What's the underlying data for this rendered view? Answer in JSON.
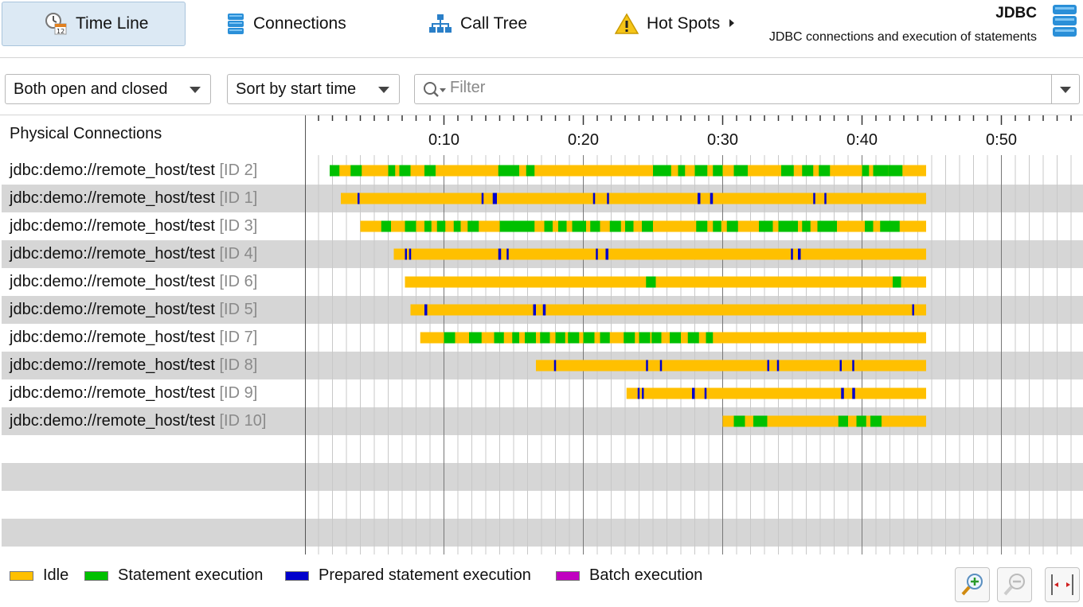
{
  "tabs": [
    {
      "label": "Time Line",
      "icon": "timeline-clock-icon",
      "active": true
    },
    {
      "label": "Connections",
      "icon": "database-icon",
      "active": false
    },
    {
      "label": "Call Tree",
      "icon": "call-tree-icon",
      "active": false
    },
    {
      "label": "Hot Spots",
      "icon": "warning-icon",
      "active": false
    }
  ],
  "header": {
    "title": "JDBC",
    "subtitle": "JDBC connections and execution of statements",
    "icon": "database-icon"
  },
  "filters": {
    "state_selected": "Both open and closed",
    "sort_selected": "Sort by start time",
    "filter_placeholder": "Filter",
    "filter_value": ""
  },
  "panel": {
    "left_header": "Physical Connections"
  },
  "timeline": {
    "unit": "seconds",
    "start_sec": 0,
    "end_sec": 56,
    "major_tick_labels": [
      "0:10",
      "0:20",
      "0:30",
      "0:40",
      "0:50"
    ],
    "major_tick_secs": [
      10,
      20,
      30,
      40,
      50
    ],
    "minor_tick_step_sec": 1
  },
  "colors": {
    "idle": "#ffc000",
    "statement": "#00c000",
    "prepared": "#0000cc",
    "batch": "#c000c0",
    "row_shade": "#d6d6d6"
  },
  "connections": [
    {
      "name": "jdbc:demo://remote_host/test",
      "id": "[ID 2]",
      "start": 2.0,
      "end": 44.6,
      "events": [
        [
          "s",
          1.8,
          2.5
        ],
        [
          "s",
          3.3,
          4.1
        ],
        [
          "s",
          6.0,
          6.5
        ],
        [
          "s",
          6.8,
          7.6
        ],
        [
          "s",
          8.6,
          9.4
        ],
        [
          "s",
          13.9,
          14.6
        ],
        [
          "s",
          14.6,
          15.4
        ],
        [
          "s",
          15.9,
          16.5
        ],
        [
          "s",
          25.0,
          25.8
        ],
        [
          "s",
          25.8,
          26.3
        ],
        [
          "s",
          26.8,
          27.3
        ],
        [
          "s",
          28.0,
          28.9
        ],
        [
          "s",
          29.3,
          30.0
        ],
        [
          "s",
          30.8,
          31.8
        ],
        [
          "s",
          34.2,
          35.1
        ],
        [
          "s",
          35.7,
          36.5
        ],
        [
          "s",
          36.9,
          37.7
        ],
        [
          "s",
          40.0,
          40.5
        ],
        [
          "s",
          40.8,
          41.9
        ],
        [
          "s",
          41.9,
          42.9
        ]
      ]
    },
    {
      "name": "jdbc:demo://remote_host/test",
      "id": "[ID 1]",
      "start": 2.6,
      "end": 44.6,
      "events": [
        [
          "p",
          3.8,
          3.9
        ],
        [
          "p",
          12.7,
          12.8
        ],
        [
          "p",
          13.5,
          13.8
        ],
        [
          "p",
          20.7,
          20.8
        ],
        [
          "p",
          21.7,
          21.8
        ],
        [
          "p",
          28.2,
          28.4
        ],
        [
          "p",
          29.1,
          29.3
        ],
        [
          "p",
          36.5,
          36.6
        ],
        [
          "p",
          37.3,
          37.4
        ]
      ]
    },
    {
      "name": "jdbc:demo://remote_host/test",
      "id": "[ID 3]",
      "start": 4.0,
      "end": 44.6,
      "events": [
        [
          "s",
          5.5,
          6.2
        ],
        [
          "s",
          7.2,
          8.0
        ],
        [
          "s",
          8.6,
          9.1
        ],
        [
          "s",
          9.5,
          10.1
        ],
        [
          "s",
          10.7,
          11.2
        ],
        [
          "s",
          11.7,
          12.5
        ],
        [
          "s",
          14.0,
          14.6
        ],
        [
          "s",
          14.6,
          15.6
        ],
        [
          "s",
          15.6,
          16.5
        ],
        [
          "s",
          17.2,
          17.8
        ],
        [
          "s",
          18.2,
          18.8
        ],
        [
          "s",
          19.2,
          20.2
        ],
        [
          "s",
          20.5,
          21.2
        ],
        [
          "s",
          21.9,
          22.7
        ],
        [
          "s",
          23.0,
          23.6
        ],
        [
          "s",
          24.2,
          25.0
        ],
        [
          "s",
          28.1,
          28.9
        ],
        [
          "s",
          29.3,
          29.9
        ],
        [
          "s",
          30.3,
          31.1
        ],
        [
          "s",
          32.6,
          33.6
        ],
        [
          "s",
          34.0,
          35.4
        ],
        [
          "s",
          35.7,
          36.3
        ],
        [
          "s",
          36.8,
          38.2
        ],
        [
          "s",
          40.2,
          40.8
        ],
        [
          "s",
          41.3,
          42.7
        ]
      ]
    },
    {
      "name": "jdbc:demo://remote_host/test",
      "id": "[ID 4]",
      "start": 6.4,
      "end": 44.6,
      "events": [
        [
          "p",
          7.2,
          7.3
        ],
        [
          "p",
          7.5,
          7.6
        ],
        [
          "p",
          13.9,
          14.1
        ],
        [
          "p",
          14.5,
          14.6
        ],
        [
          "p",
          20.9,
          21.0
        ],
        [
          "p",
          21.6,
          21.8
        ],
        [
          "p",
          34.9,
          35.0
        ],
        [
          "p",
          35.4,
          35.6
        ]
      ]
    },
    {
      "name": "jdbc:demo://remote_host/test",
      "id": "[ID 6]",
      "start": 7.2,
      "end": 44.6,
      "events": [
        [
          "s",
          24.5,
          25.2
        ],
        [
          "s",
          42.2,
          42.8
        ]
      ]
    },
    {
      "name": "jdbc:demo://remote_host/test",
      "id": "[ID 5]",
      "start": 7.6,
      "end": 44.6,
      "events": [
        [
          "p",
          8.6,
          8.8
        ],
        [
          "p",
          16.4,
          16.6
        ],
        [
          "p",
          17.1,
          17.3
        ],
        [
          "p",
          43.6,
          43.7
        ]
      ]
    },
    {
      "name": "jdbc:demo://remote_host/test",
      "id": "[ID 7]",
      "start": 8.3,
      "end": 44.6,
      "events": [
        [
          "s",
          10.0,
          10.8
        ],
        [
          "s",
          11.8,
          12.7
        ],
        [
          "s",
          13.6,
          14.3
        ],
        [
          "s",
          14.9,
          15.4
        ],
        [
          "s",
          15.8,
          16.6
        ],
        [
          "s",
          16.9,
          17.6
        ],
        [
          "s",
          18.0,
          18.7
        ],
        [
          "s",
          18.9,
          19.7
        ],
        [
          "s",
          20.0,
          20.8
        ],
        [
          "s",
          21.2,
          21.9
        ],
        [
          "s",
          22.9,
          23.7
        ],
        [
          "s",
          24.0,
          24.8
        ],
        [
          "s",
          24.9,
          25.6
        ],
        [
          "s",
          26.2,
          27.0
        ],
        [
          "s",
          27.5,
          28.3
        ],
        [
          "s",
          28.8,
          29.3
        ]
      ]
    },
    {
      "name": "jdbc:demo://remote_host/test",
      "id": "[ID 8]",
      "start": 16.6,
      "end": 44.6,
      "events": [
        [
          "p",
          17.9,
          18.0
        ],
        [
          "p",
          24.5,
          24.6
        ],
        [
          "p",
          25.5,
          25.6
        ],
        [
          "p",
          33.2,
          33.3
        ],
        [
          "p",
          33.9,
          34.0
        ],
        [
          "p",
          38.4,
          38.5
        ],
        [
          "p",
          39.3,
          39.4
        ]
      ]
    },
    {
      "name": "jdbc:demo://remote_host/test",
      "id": "[ID 9]",
      "start": 23.1,
      "end": 44.6,
      "events": [
        [
          "p",
          23.9,
          24.0
        ],
        [
          "p",
          24.2,
          24.3
        ],
        [
          "p",
          27.8,
          28.0
        ],
        [
          "p",
          28.7,
          28.8
        ],
        [
          "p",
          38.5,
          38.7
        ],
        [
          "p",
          39.3,
          39.5
        ]
      ]
    },
    {
      "name": "jdbc:demo://remote_host/test",
      "id": "[ID 10]",
      "start": 30.0,
      "end": 44.6,
      "events": [
        [
          "s",
          30.8,
          31.6
        ],
        [
          "s",
          32.2,
          33.2
        ],
        [
          "s",
          38.3,
          39.0
        ],
        [
          "s",
          39.6,
          40.3
        ],
        [
          "s",
          40.6,
          41.4
        ]
      ]
    }
  ],
  "legend": [
    {
      "label": "Idle",
      "color": "#ffc000"
    },
    {
      "label": "Statement execution",
      "color": "#00c000"
    },
    {
      "label": "Prepared statement execution",
      "color": "#0000cc"
    },
    {
      "label": "Batch execution",
      "color": "#c000c0"
    }
  ],
  "zoom_buttons": [
    {
      "icon": "zoom-in-icon",
      "enabled": true
    },
    {
      "icon": "zoom-out-icon",
      "enabled": false
    },
    {
      "icon": "fit-width-icon",
      "enabled": true
    }
  ]
}
